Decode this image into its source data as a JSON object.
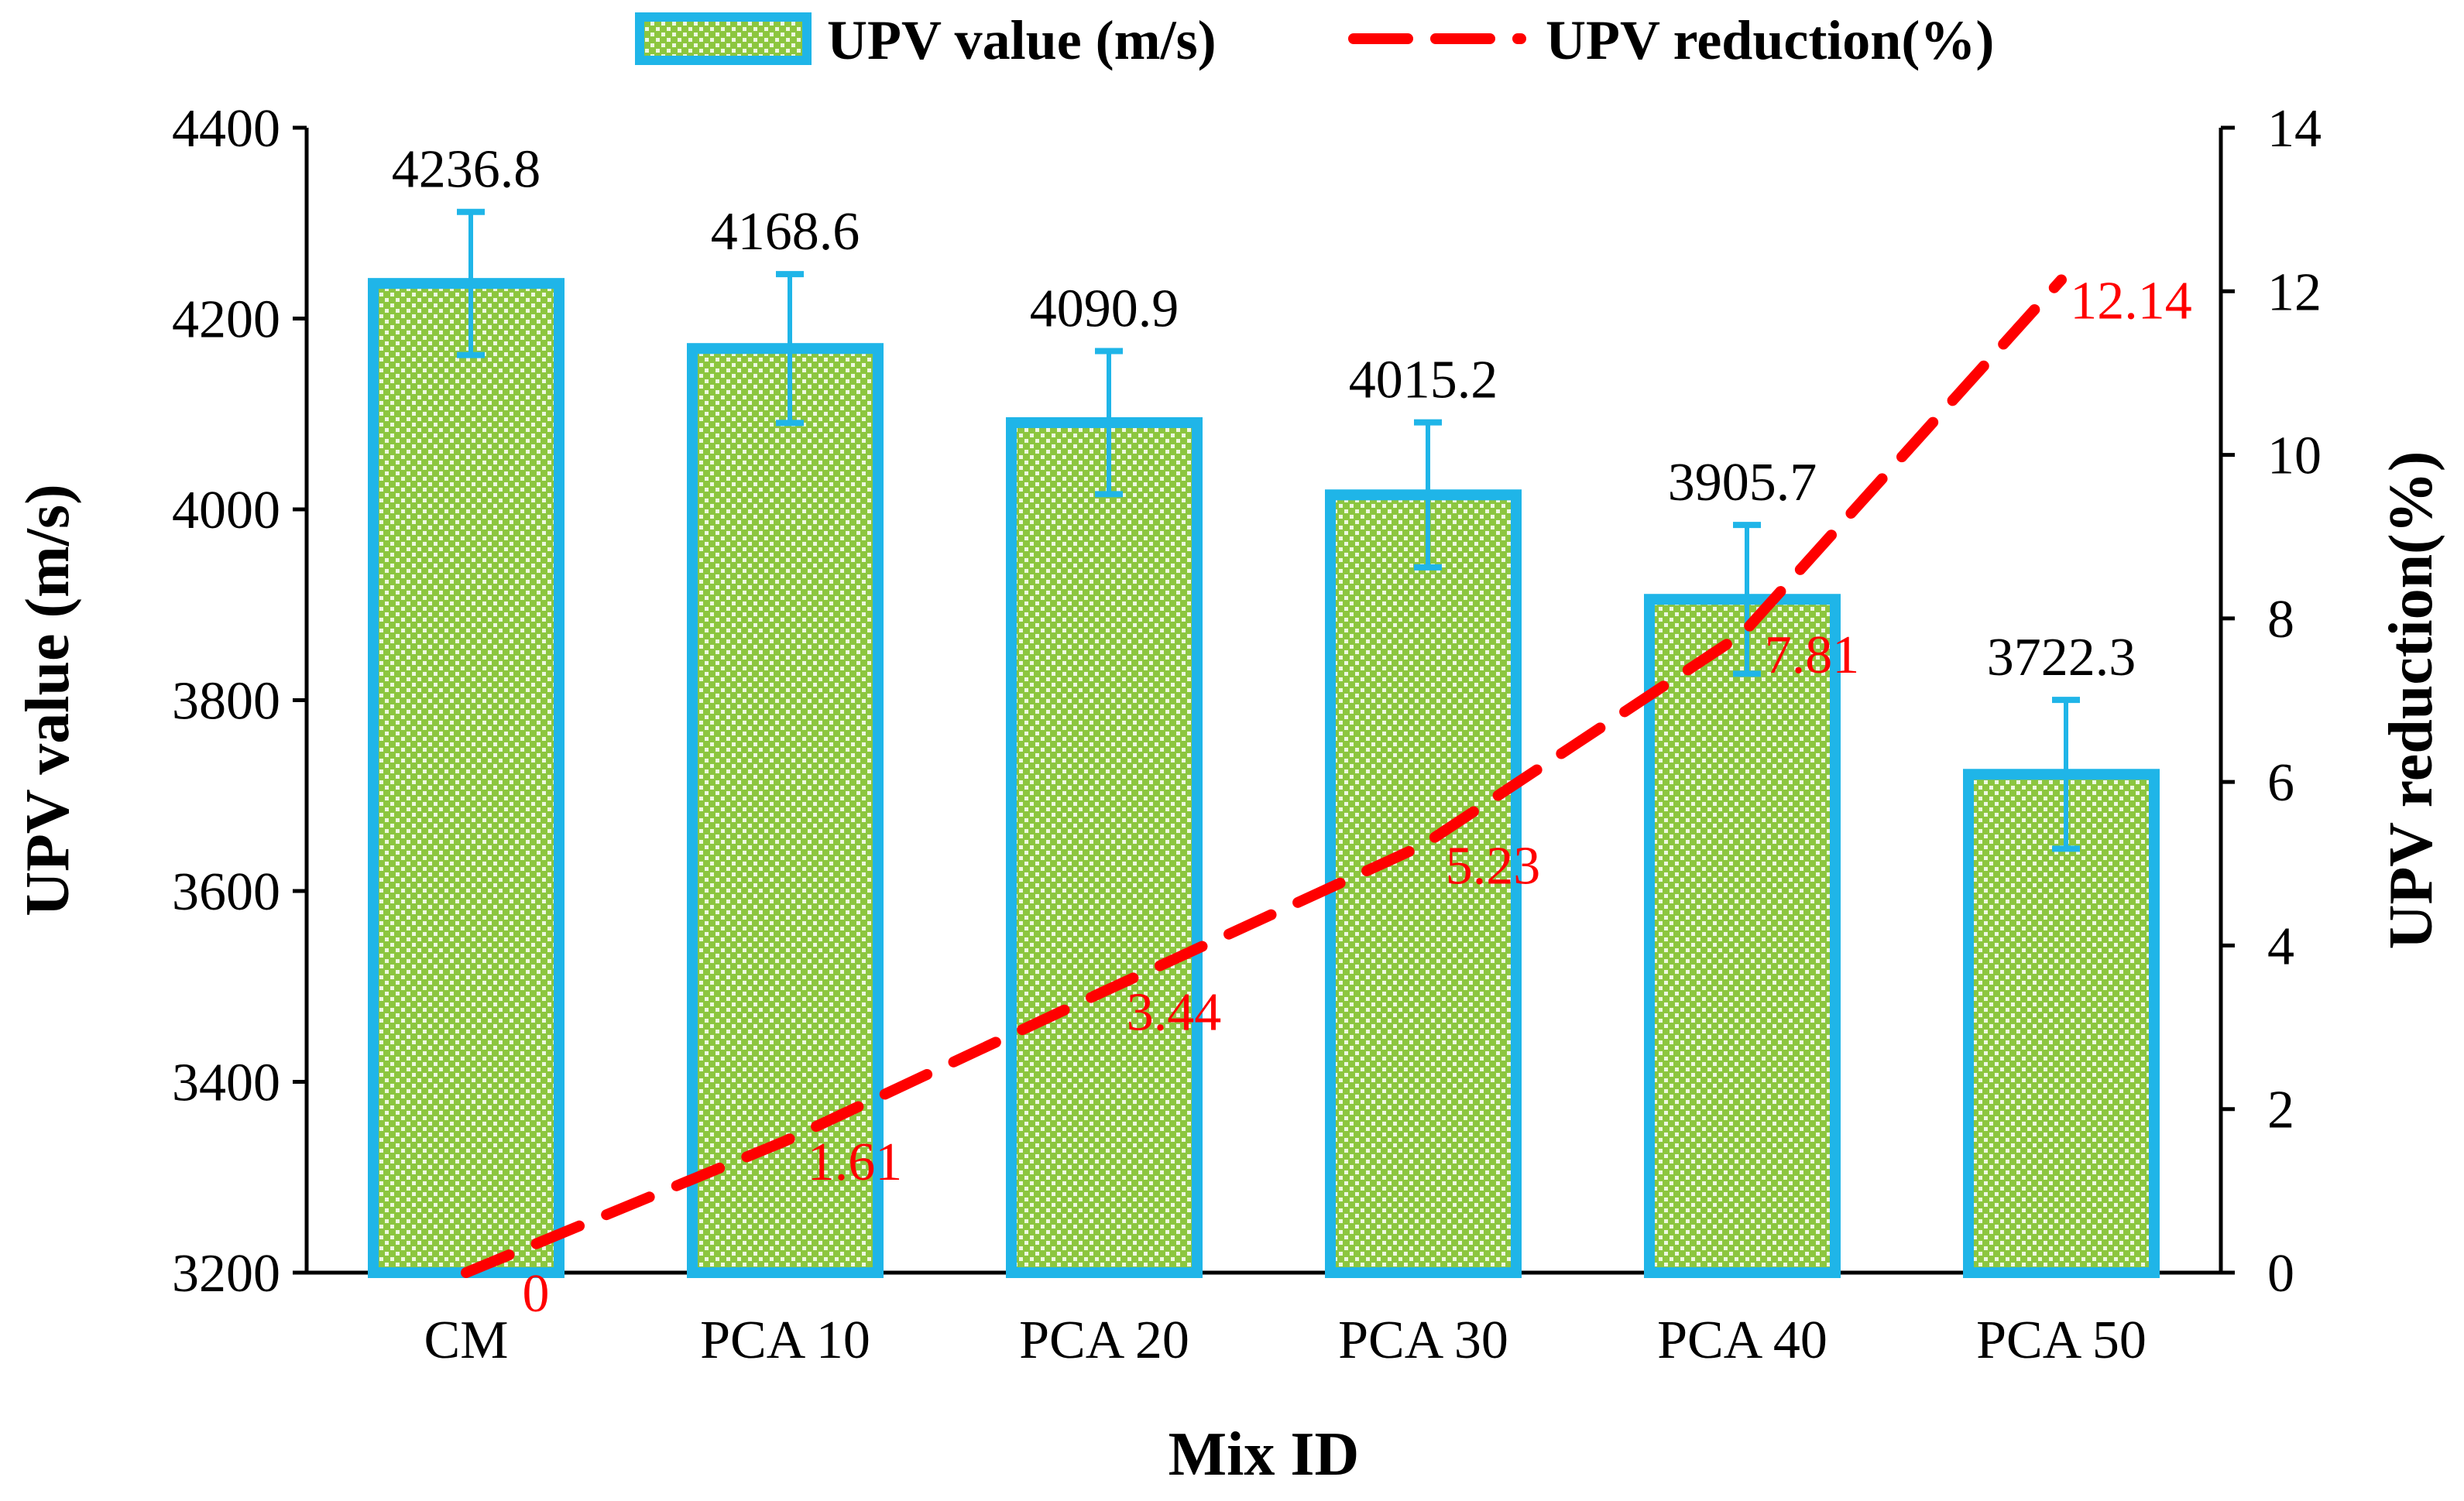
{
  "colors": {
    "bar_fill": "#8cc63f",
    "bar_border": "#1fb5e8",
    "line": "#ff0000",
    "axis": "#000000",
    "error_bar": "#1fb5e8"
  },
  "chart_data": {
    "type": "bar",
    "categories": [
      "CM",
      "PCA 10",
      "PCA 20",
      "PCA 30",
      "PCA 40",
      "PCA 50"
    ],
    "xlabel": "Mix ID",
    "ylabel": "UPV value (m/s)",
    "y2label": "UPV reduction(%)",
    "ylim": [
      3200,
      4400
    ],
    "y2lim": [
      0,
      14
    ],
    "yticks": [
      3200,
      3400,
      3600,
      3800,
      4000,
      4200,
      4400
    ],
    "y2ticks": [
      0,
      2,
      4,
      6,
      8,
      10,
      12,
      14
    ],
    "series": [
      {
        "name": "UPV value (m/s)",
        "kind": "bar",
        "axis": "left",
        "values": [
          4236.8,
          4168.6,
          4090.9,
          4015.2,
          3905.7,
          3722.3
        ],
        "labels": [
          "4236.8",
          "4168.6",
          "4090.9",
          "4015.2",
          "3905.7",
          "3722.3"
        ],
        "error": [
          75,
          78,
          75,
          76,
          78,
          78
        ]
      },
      {
        "name": "UPV reduction(%)",
        "kind": "line",
        "style": "dashed",
        "axis": "right",
        "values": [
          0,
          1.61,
          3.44,
          5.23,
          7.81,
          12.14
        ],
        "labels": [
          "0",
          "1.61",
          "3.44",
          "5.23",
          "7.81",
          "12.14"
        ]
      }
    ],
    "legend": {
      "position": "top-center",
      "items": [
        "UPV value (m/s)",
        "UPV reduction(%)"
      ]
    },
    "grid": false
  }
}
